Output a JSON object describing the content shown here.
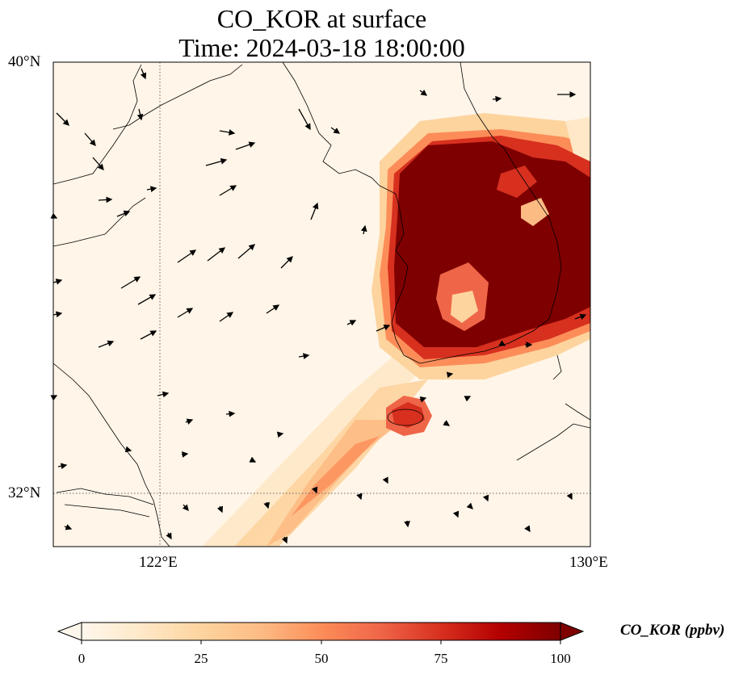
{
  "title": {
    "line1": "CO_KOR at surface",
    "line2": "Time: 2024-03-18 18:00:00"
  },
  "axes": {
    "lat_ticks": [
      "40°N",
      "32°N"
    ],
    "lon_ticks": [
      "122°E",
      "130°E"
    ],
    "lat_range": [
      31,
      40
    ],
    "lon_range": [
      120,
      130
    ]
  },
  "colorbar": {
    "label": "CO_KOR (ppbv)",
    "ticks": [
      "0",
      "25",
      "50",
      "75",
      "100"
    ],
    "range": [
      0,
      100
    ],
    "colormap": "OrRd",
    "extend": "both",
    "colors": [
      "#fff7ec",
      "#fee8c8",
      "#fdd49e",
      "#fdbb84",
      "#fc8d59",
      "#ef6548",
      "#d7301f",
      "#b30000",
      "#7f0000"
    ]
  },
  "plume": {
    "max_region": "southern Korean peninsula",
    "secondary_max": "Jeju Island",
    "direction": "southwest over Yellow Sea / East China Sea"
  },
  "wind_vectors": "black arrows, predominantly westerly/northeasterly-bound flow",
  "gridlines": "dotted at 122°E and 32°N"
}
